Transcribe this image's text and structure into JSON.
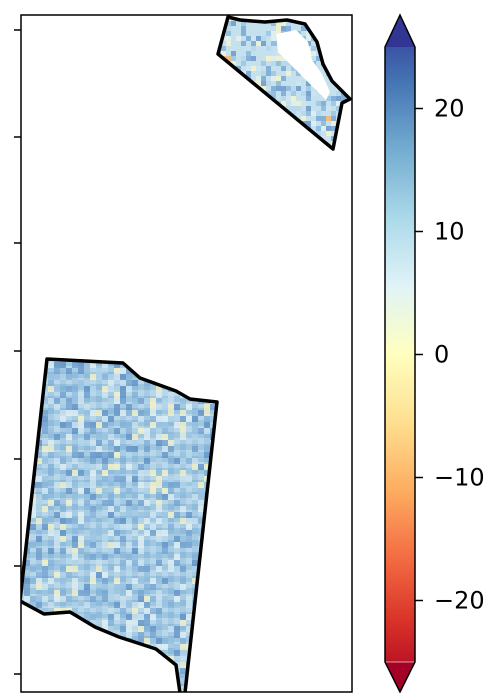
{
  "map": {
    "regions": [
      {
        "name": "north-east-region"
      },
      {
        "name": "south-west-region"
      }
    ],
    "axis": {
      "left_ticks_count": 7
    }
  },
  "colorbar": {
    "colormap": "RdYlBu",
    "vmin": -25,
    "vmax": 25,
    "extend": "both",
    "tick_labels": [
      "20",
      "10",
      "0",
      "−10",
      "−20"
    ],
    "tick_values": [
      20,
      10,
      0,
      -10,
      -20
    ],
    "colors": {
      "high": "#313695",
      "mid_high": "#74add1",
      "neutral": "#ffffbf",
      "mid_low": "#f46d43",
      "low": "#a50026"
    }
  }
}
